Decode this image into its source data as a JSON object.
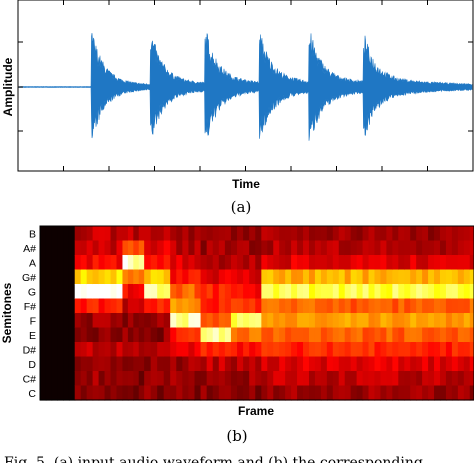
{
  "chart_data": [
    {
      "type": "line",
      "panel_label": "(a)",
      "xlabel": "Time",
      "ylabel": "Amplitude",
      "series_color": "#1f77c4",
      "onsets": [
        0.16,
        0.29,
        0.41,
        0.53,
        0.64,
        0.76
      ],
      "peaks": [
        1.0,
        0.95,
        1.0,
        0.92,
        0.93,
        0.85
      ],
      "xticks": 10,
      "ylim": [
        -1,
        1
      ]
    },
    {
      "type": "heatmap",
      "panel_label": "(b)",
      "xlabel": "Frame",
      "ylabel": "Semitones",
      "rows": [
        "B",
        "A#",
        "A",
        "G#",
        "G",
        "F#",
        "F",
        "E",
        "D#",
        "D",
        "C#",
        "C"
      ],
      "segments": [
        {
          "w": 0.08,
          "values": [
            0.02,
            0.02,
            0.02,
            0.02,
            0.02,
            0.02,
            0.02,
            0.02,
            0.02,
            0.02,
            0.02,
            0.02
          ]
        },
        {
          "w": 0.11,
          "values": [
            0.3,
            0.32,
            0.4,
            0.75,
            1.0,
            0.45,
            0.25,
            0.2,
            0.3,
            0.22,
            0.25,
            0.22
          ]
        },
        {
          "w": 0.05,
          "values": [
            0.3,
            0.55,
            0.95,
            0.6,
            0.4,
            0.3,
            0.22,
            0.22,
            0.25,
            0.22,
            0.2,
            0.2
          ]
        },
        {
          "w": 0.06,
          "values": [
            0.28,
            0.35,
            0.4,
            0.72,
            0.92,
            0.45,
            0.25,
            0.22,
            0.28,
            0.22,
            0.25,
            0.22
          ]
        },
        {
          "w": 0.07,
          "values": [
            0.25,
            0.28,
            0.35,
            0.42,
            0.55,
            0.62,
            0.92,
            0.45,
            0.35,
            0.25,
            0.25,
            0.22
          ]
        },
        {
          "w": 0.07,
          "values": [
            0.25,
            0.25,
            0.28,
            0.35,
            0.45,
            0.45,
            0.55,
            0.92,
            0.45,
            0.3,
            0.25,
            0.22
          ]
        },
        {
          "w": 0.07,
          "values": [
            0.25,
            0.25,
            0.3,
            0.35,
            0.42,
            0.48,
            0.85,
            0.6,
            0.4,
            0.28,
            0.25,
            0.22
          ]
        },
        {
          "w": 0.59,
          "values": [
            0.25,
            0.28,
            0.35,
            0.68,
            0.85,
            0.55,
            0.65,
            0.55,
            0.45,
            0.35,
            0.3,
            0.25
          ]
        }
      ]
    }
  ],
  "caption_text": "Fig. 5. (a) input audio waveform and (b) the corresponding"
}
